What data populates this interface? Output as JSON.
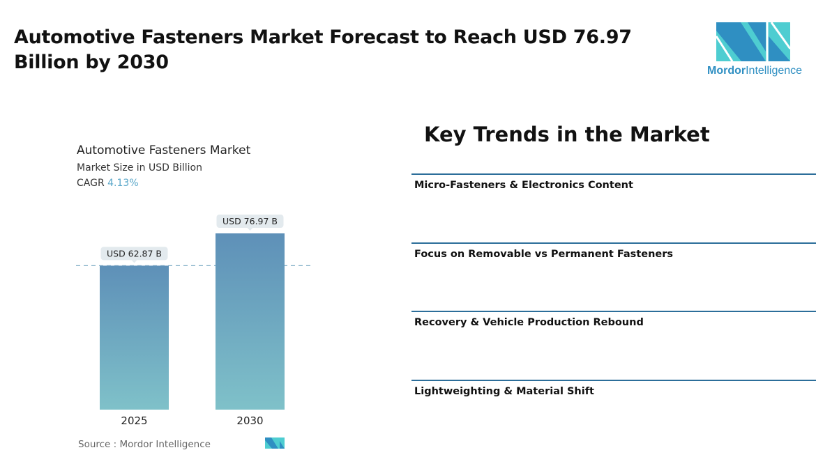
{
  "header": {
    "title": "Automotive Fasteners Market Forecast to Reach USD 76.97 Billion by 2030"
  },
  "logo": {
    "brand_bold": "Mordor",
    "brand_light": "Intelligence",
    "colors": [
      "#2f8fc2",
      "#4ecdd1"
    ]
  },
  "chart_data": {
    "type": "bar",
    "title": "Automotive Fasteners Market",
    "subtitle": "Market Size in USD Billion",
    "cagr_label": "CAGR",
    "cagr_value": "4.13%",
    "categories": [
      "2025",
      "2030"
    ],
    "values": [
      62.87,
      76.97
    ],
    "data_labels": [
      "USD 62.87 B",
      "USD 76.97 B"
    ],
    "ylim": [
      0,
      76.97
    ],
    "grid": false,
    "reference_line": 62.87,
    "bar_gradient": [
      "#5e90b8",
      "#7fc1c9"
    ],
    "source": "Source :  Mordor Intelligence"
  },
  "trends": {
    "heading": "Key Trends in the Market",
    "items": [
      "Micro-Fasteners & Electronics Content",
      "Focus on Removable vs Permanent Fasteners",
      "Recovery & Vehicle Production Rebound",
      "Lightweighting & Material Shift"
    ]
  }
}
